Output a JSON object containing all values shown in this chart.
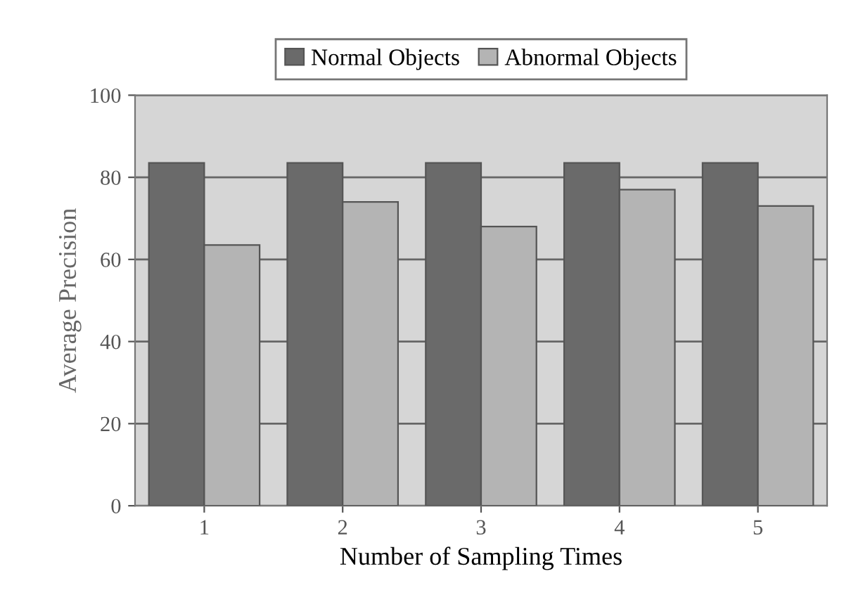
{
  "chart_data": {
    "type": "bar",
    "xlabel": "Number of Sampling Times",
    "ylabel": "Average Precision",
    "categories": [
      "1",
      "2",
      "3",
      "4",
      "5"
    ],
    "series": [
      {
        "name": "Normal Objects",
        "color": "#6a6a6a",
        "values": [
          83.5,
          83.5,
          83.5,
          83.5,
          83.5
        ]
      },
      {
        "name": "Abnormal Objects",
        "color": "#b4b4b4",
        "values": [
          63.5,
          74,
          68,
          77,
          73
        ]
      }
    ],
    "ylim": [
      0,
      100
    ],
    "yticks": [
      0,
      20,
      40,
      60,
      80,
      100
    ],
    "grid": "y",
    "legend": "top"
  }
}
